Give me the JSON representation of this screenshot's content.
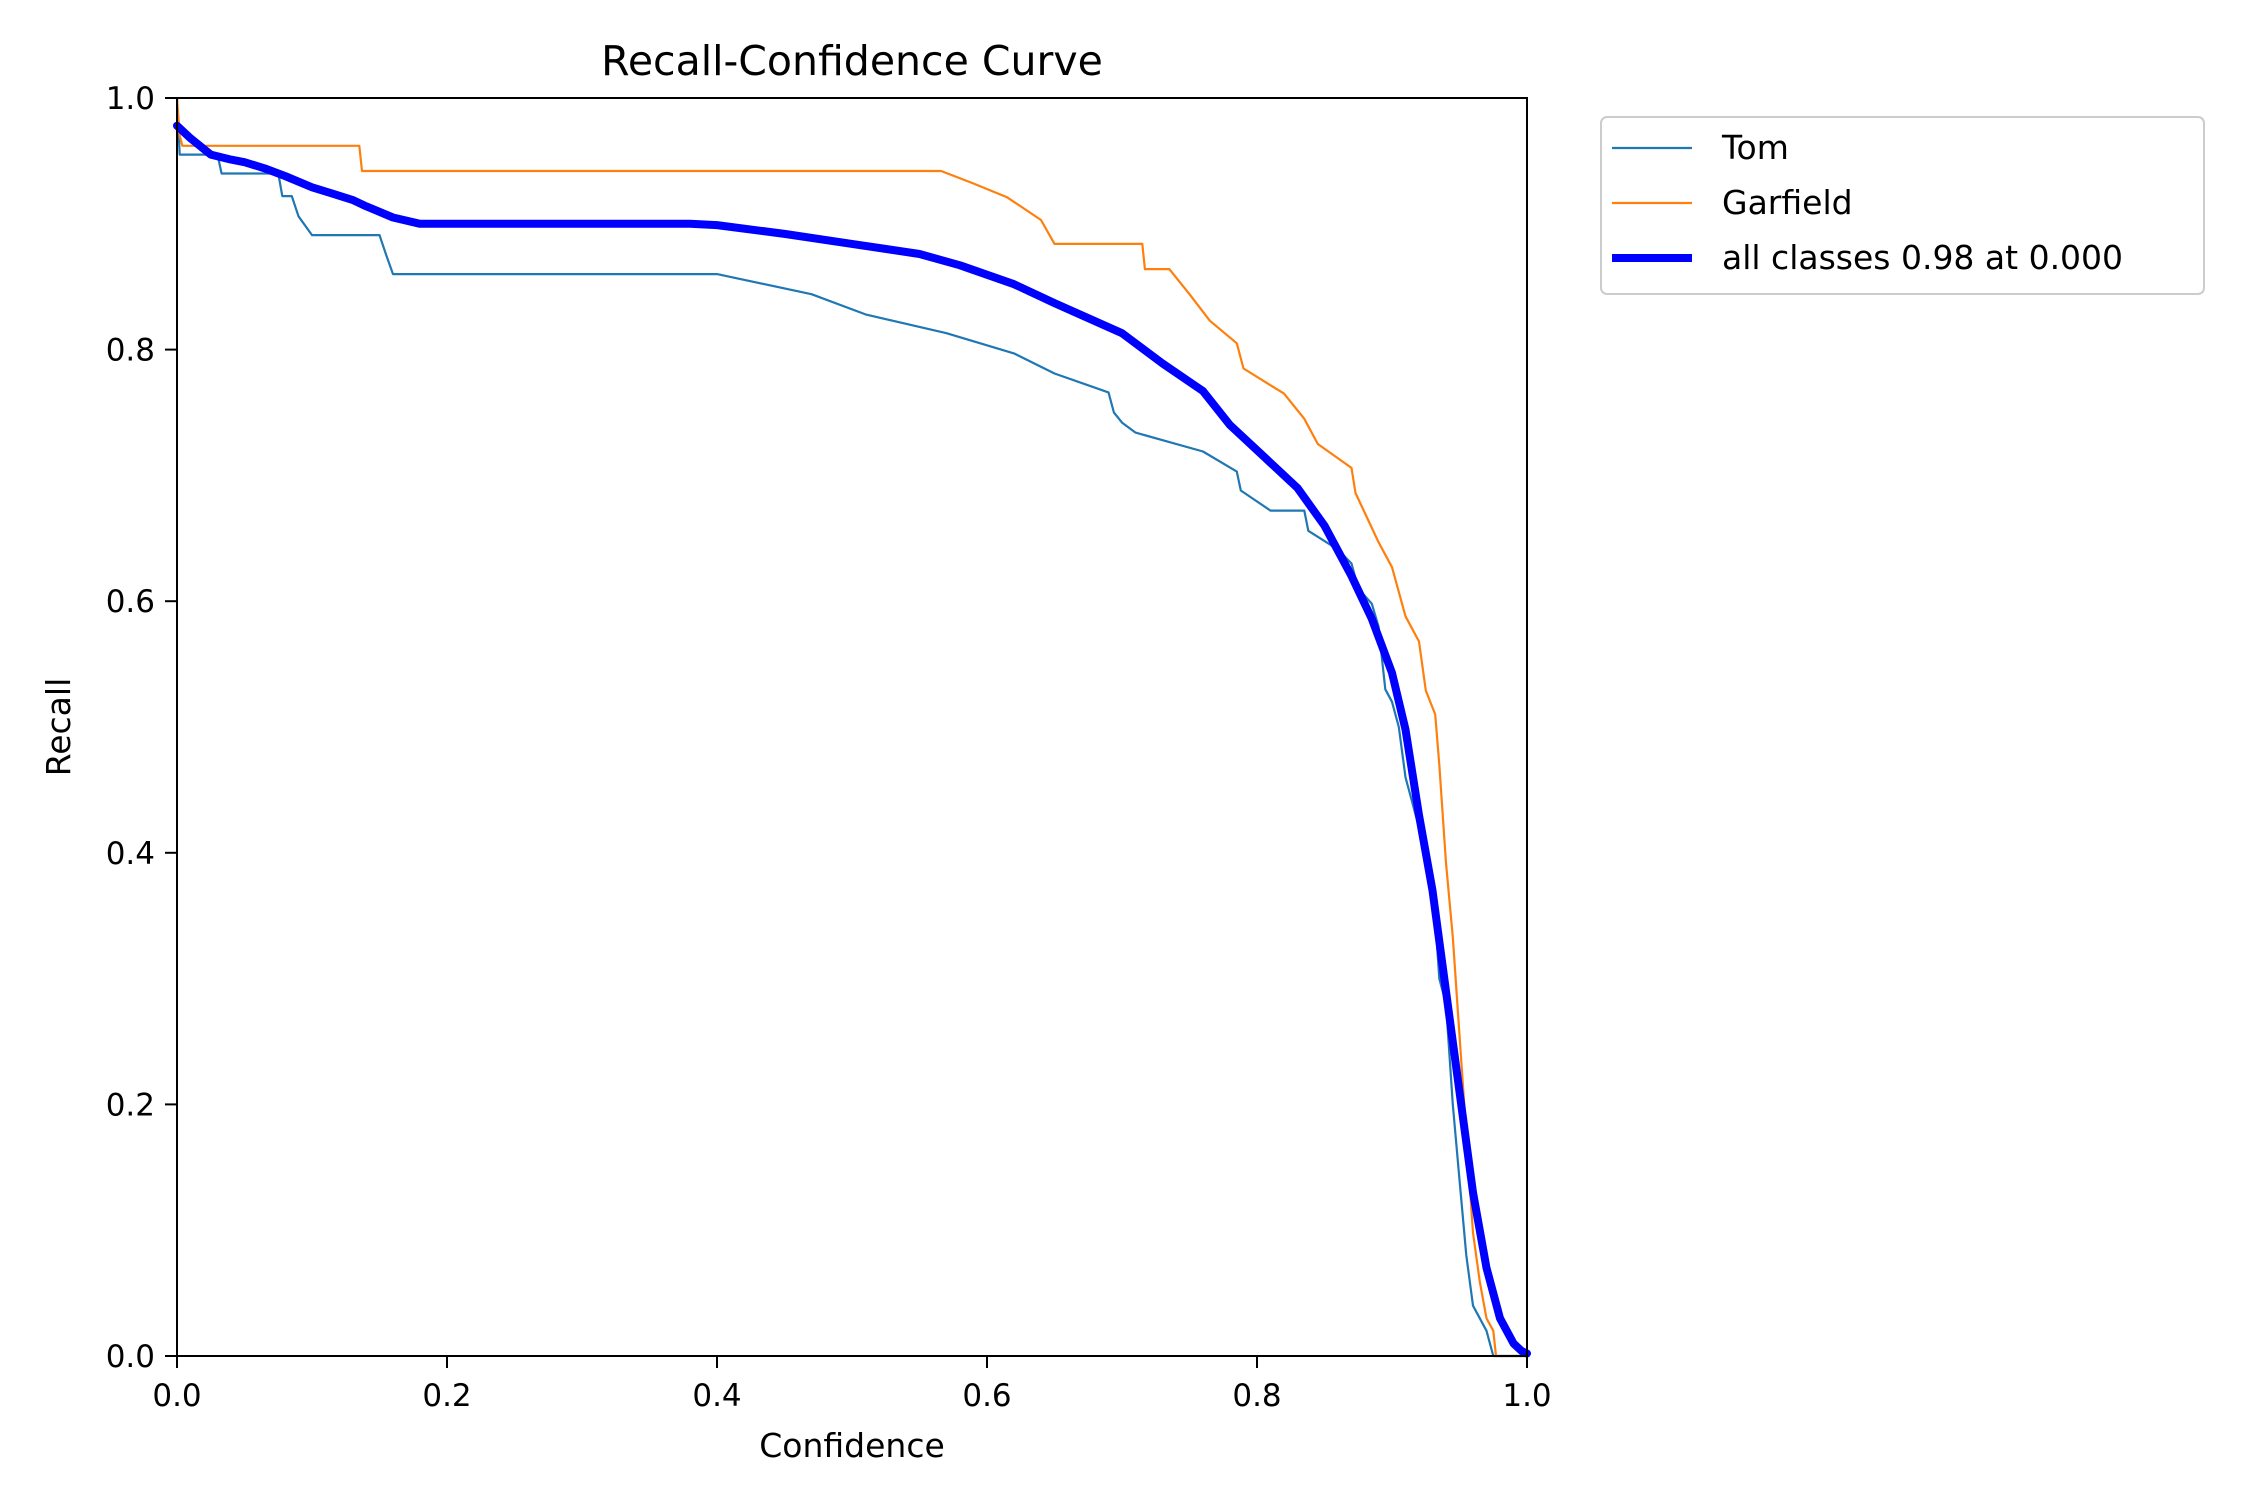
{
  "chart_data": {
    "type": "line",
    "title": "Recall-Confidence Curve",
    "xlabel": "Confidence",
    "ylabel": "Recall",
    "xlim": [
      0,
      1
    ],
    "ylim": [
      0,
      1
    ],
    "xticks": [
      "0.0",
      "0.2",
      "0.4",
      "0.6",
      "0.8",
      "1.0"
    ],
    "yticks": [
      "0.0",
      "0.2",
      "0.4",
      "0.6",
      "0.8",
      "1.0"
    ],
    "grid": false,
    "legend_position": "outside-top-right",
    "series": [
      {
        "name": "Tom",
        "color": "#1f77b4",
        "linewidth": "thin",
        "x": [
          0.0,
          0.002,
          0.004,
          0.03,
          0.033,
          0.075,
          0.078,
          0.085,
          0.09,
          0.1,
          0.15,
          0.155,
          0.16,
          0.163,
          0.2,
          0.3,
          0.4,
          0.47,
          0.51,
          0.57,
          0.62,
          0.65,
          0.69,
          0.694,
          0.7,
          0.71,
          0.76,
          0.785,
          0.788,
          0.81,
          0.835,
          0.838,
          0.86,
          0.87,
          0.875,
          0.885,
          0.89,
          0.892,
          0.895,
          0.9,
          0.905,
          0.91,
          0.915,
          0.92,
          0.925,
          0.93,
          0.935,
          0.94,
          0.945,
          0.95,
          0.955,
          0.96,
          0.965,
          0.97,
          0.975,
          0.98,
          1.0
        ],
        "y": [
          1.0,
          0.955,
          0.955,
          0.955,
          0.94,
          0.94,
          0.922,
          0.922,
          0.906,
          0.891,
          0.891,
          0.875,
          0.86,
          0.86,
          0.86,
          0.86,
          0.86,
          0.844,
          0.828,
          0.813,
          0.797,
          0.781,
          0.766,
          0.75,
          0.742,
          0.734,
          0.719,
          0.703,
          0.688,
          0.672,
          0.672,
          0.656,
          0.641,
          0.63,
          0.61,
          0.598,
          0.58,
          0.56,
          0.53,
          0.52,
          0.5,
          0.46,
          0.44,
          0.42,
          0.41,
          0.38,
          0.3,
          0.28,
          0.2,
          0.14,
          0.08,
          0.04,
          0.03,
          0.02,
          0.0,
          0.0,
          0.0
        ]
      },
      {
        "name": "Garfield",
        "color": "#ff7f0e",
        "linewidth": "thin",
        "x": [
          0.0,
          0.002,
          0.004,
          0.135,
          0.137,
          0.2,
          0.3,
          0.4,
          0.5,
          0.566,
          0.59,
          0.615,
          0.64,
          0.65,
          0.66,
          0.7,
          0.715,
          0.717,
          0.735,
          0.75,
          0.765,
          0.785,
          0.79,
          0.82,
          0.835,
          0.845,
          0.87,
          0.873,
          0.89,
          0.9,
          0.91,
          0.92,
          0.925,
          0.932,
          0.935,
          0.94,
          0.945,
          0.95,
          0.955,
          0.96,
          0.965,
          0.97,
          0.975,
          0.977,
          0.978,
          1.0
        ],
        "y": [
          1.0,
          0.97,
          0.962,
          0.962,
          0.942,
          0.942,
          0.942,
          0.942,
          0.942,
          0.942,
          0.932,
          0.921,
          0.903,
          0.884,
          0.884,
          0.884,
          0.884,
          0.864,
          0.864,
          0.844,
          0.823,
          0.805,
          0.785,
          0.765,
          0.745,
          0.725,
          0.706,
          0.686,
          0.647,
          0.627,
          0.588,
          0.568,
          0.529,
          0.51,
          0.47,
          0.392,
          0.333,
          0.255,
          0.176,
          0.098,
          0.059,
          0.03,
          0.02,
          0.0,
          0.0,
          0.0
        ]
      },
      {
        "name": "all classes 0.98 at 0.000",
        "color": "#0000ff",
        "linewidth": "thick",
        "x": [
          0.0,
          0.01,
          0.025,
          0.04,
          0.05,
          0.065,
          0.08,
          0.1,
          0.115,
          0.13,
          0.14,
          0.16,
          0.18,
          0.2,
          0.3,
          0.38,
          0.4,
          0.45,
          0.5,
          0.55,
          0.58,
          0.62,
          0.65,
          0.7,
          0.73,
          0.76,
          0.78,
          0.8,
          0.83,
          0.85,
          0.87,
          0.885,
          0.9,
          0.91,
          0.92,
          0.93,
          0.94,
          0.95,
          0.96,
          0.97,
          0.98,
          0.99,
          0.996,
          1.0
        ],
        "y": [
          0.978,
          0.968,
          0.955,
          0.951,
          0.949,
          0.944,
          0.938,
          0.929,
          0.924,
          0.919,
          0.914,
          0.905,
          0.9,
          0.9,
          0.9,
          0.9,
          0.899,
          0.892,
          0.884,
          0.876,
          0.867,
          0.852,
          0.837,
          0.813,
          0.789,
          0.767,
          0.74,
          0.72,
          0.69,
          0.66,
          0.62,
          0.586,
          0.543,
          0.498,
          0.43,
          0.37,
          0.29,
          0.21,
          0.13,
          0.07,
          0.03,
          0.01,
          0.004,
          0.002
        ]
      }
    ]
  }
}
